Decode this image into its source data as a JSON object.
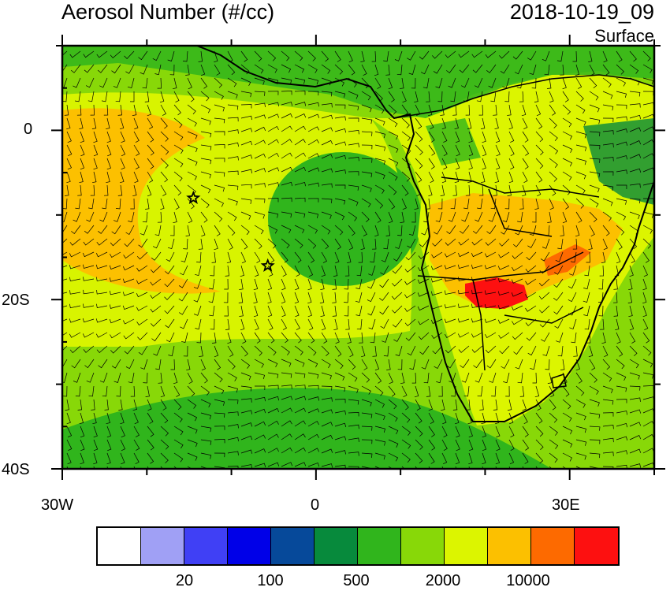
{
  "title": "Aerosol Number (#/cc)",
  "datetime": "2018-10-19_09",
  "level": "Surface",
  "lon_labels": [
    "30W",
    "0",
    "30E"
  ],
  "lat_labels": [
    "0",
    "20S",
    "40S"
  ],
  "map_extent": {
    "lon": [
      -30,
      40
    ],
    "lat": [
      -40,
      10
    ]
  },
  "markers": [
    {
      "name": "star-1",
      "lon": -14.5,
      "lat": -8
    },
    {
      "name": "star-2",
      "lon": -5.7,
      "lat": -16
    }
  ],
  "colorbar": {
    "colors": [
      "#ffffff",
      "#a0a0f5",
      "#4040f5",
      "#0000e8",
      "#06499a",
      "#078a3c",
      "#30b51c",
      "#88d808",
      "#dcf500",
      "#fcc000",
      "#fd6a00",
      "#fd1010"
    ],
    "labels": [
      "20",
      "100",
      "500",
      "2000",
      "10000"
    ]
  }
}
